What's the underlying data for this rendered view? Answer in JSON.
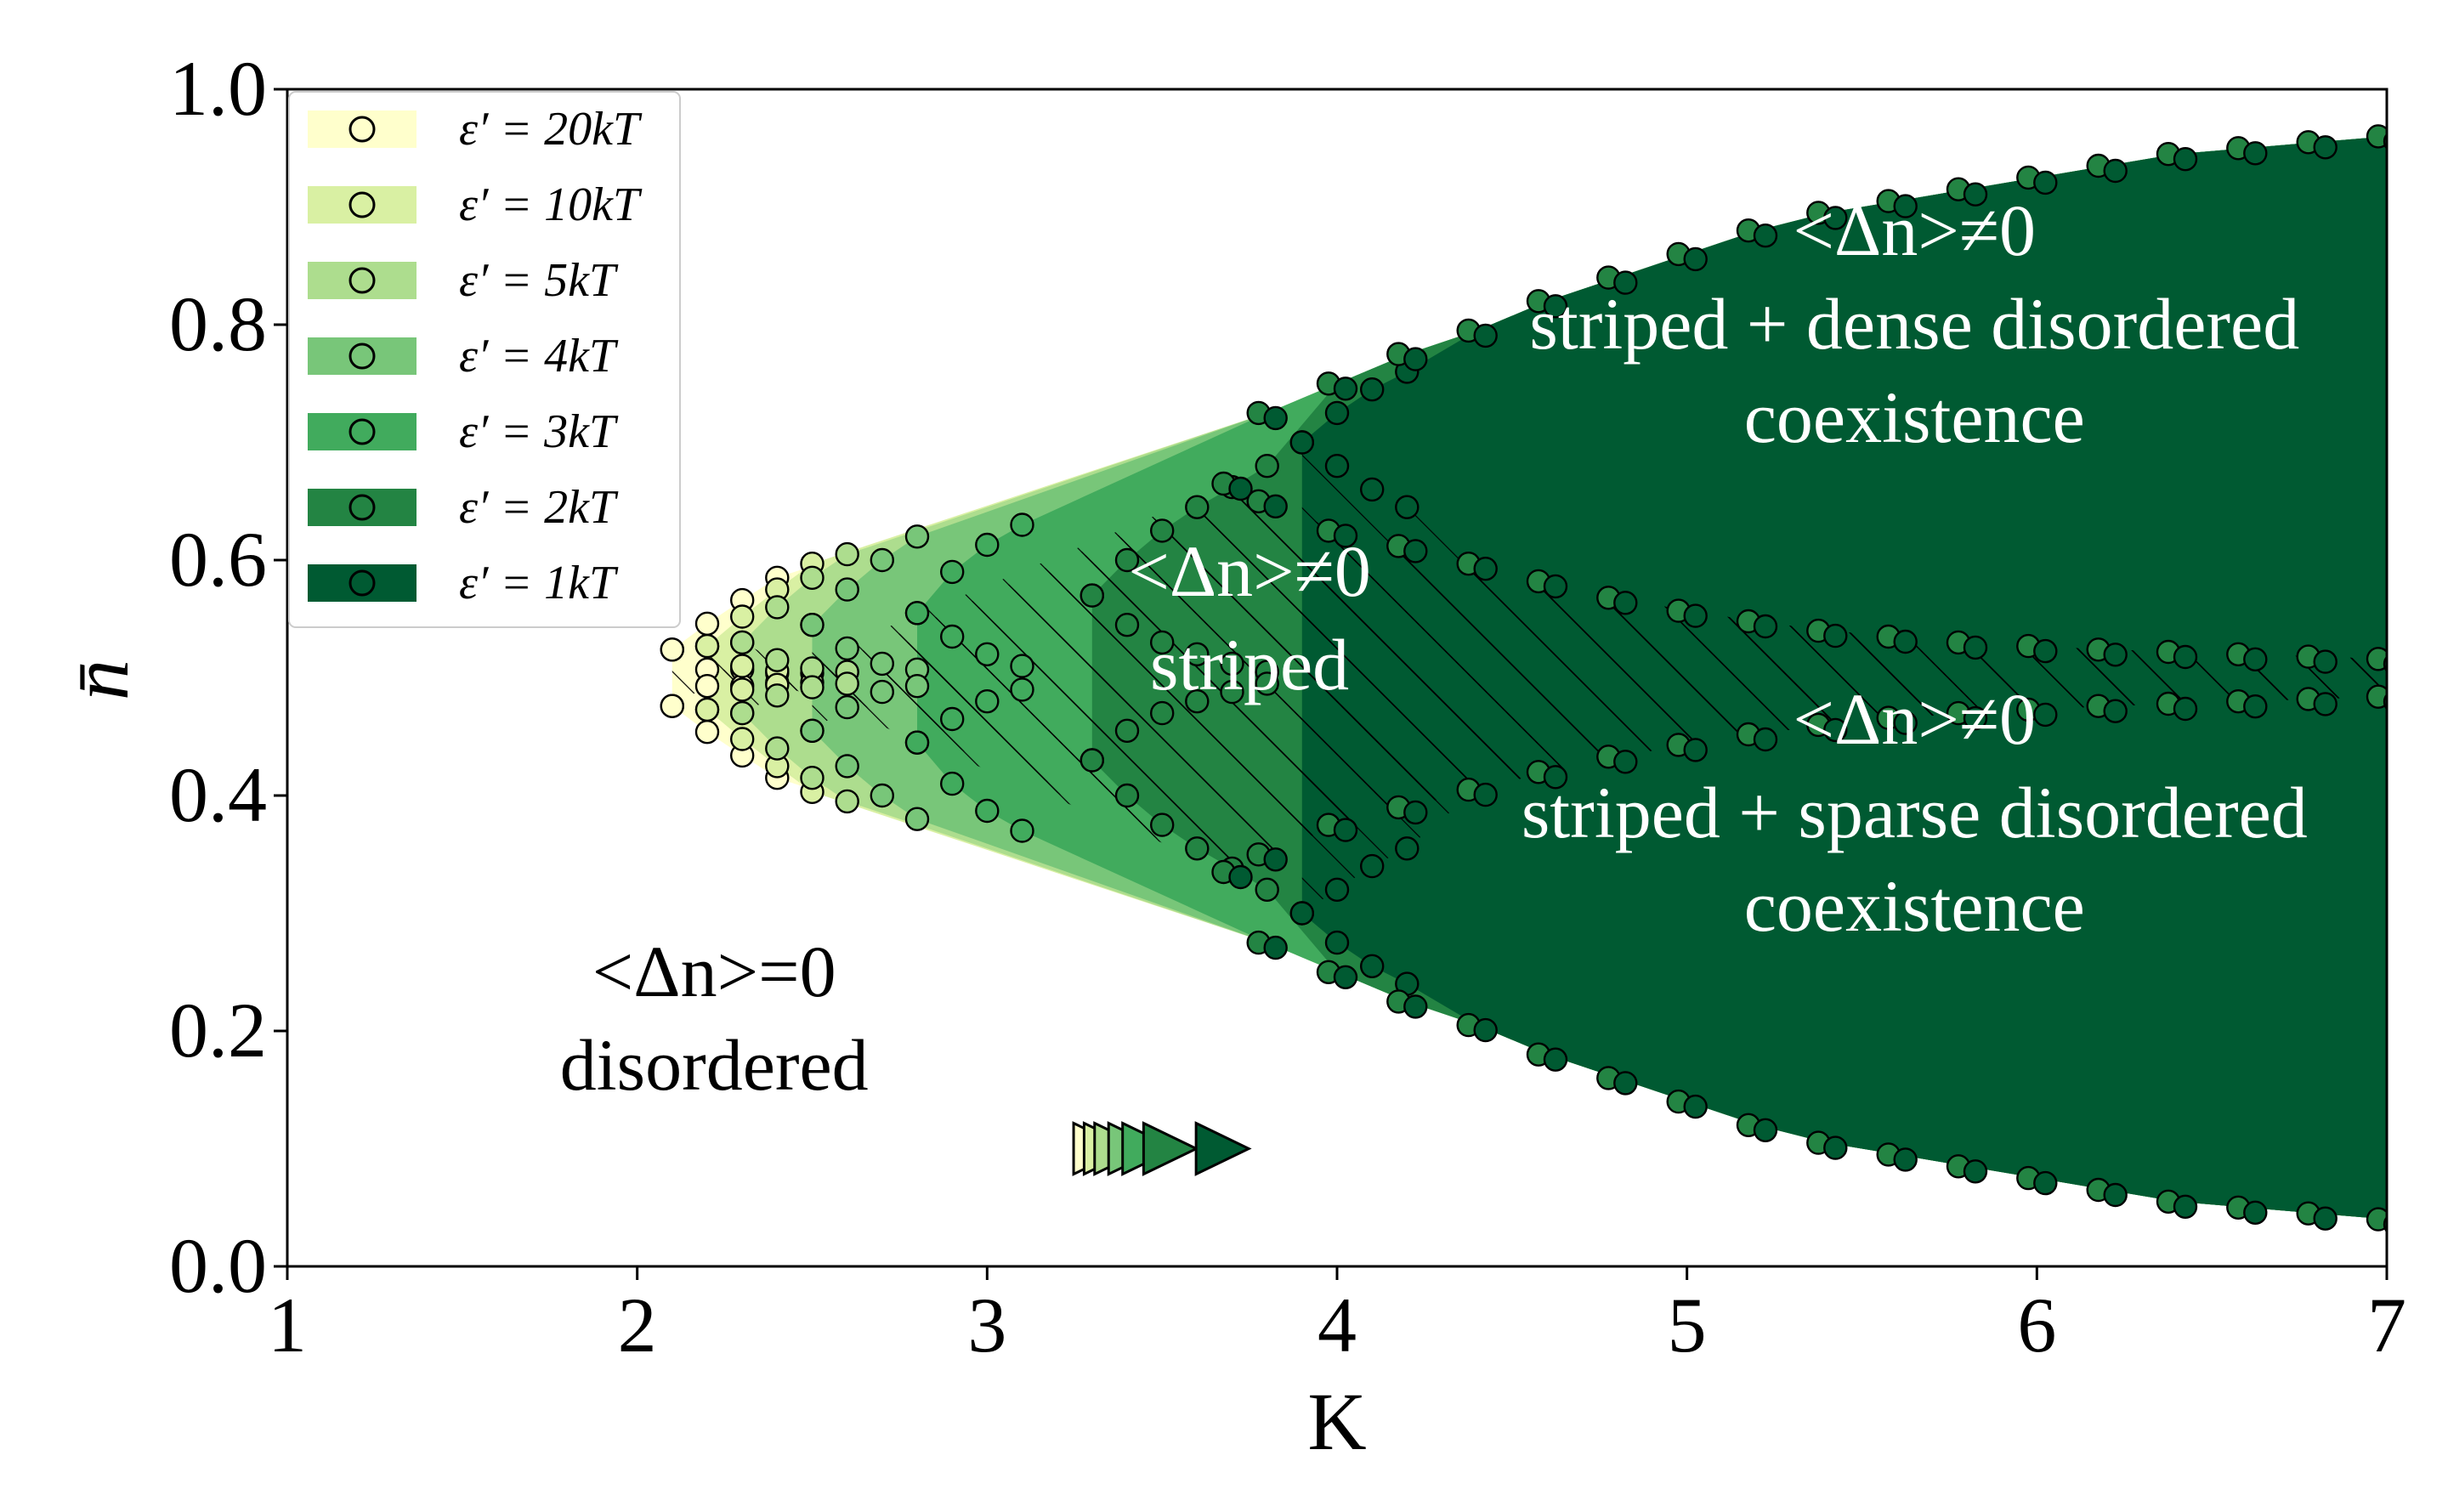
{
  "chart_data": {
    "type": "area",
    "xlabel": "K",
    "ylabel": "n̄",
    "xlim": [
      1,
      7
    ],
    "ylim": [
      0,
      1.0
    ],
    "xticks": [
      "1",
      "2",
      "3",
      "4",
      "5",
      "6",
      "7"
    ],
    "yticks": [
      "0.0",
      "0.2",
      "0.4",
      "0.6",
      "0.8",
      "1.0"
    ],
    "legend_position": "top-left",
    "series": [
      {
        "name": "ε′ = 20kT",
        "color": "#ffffcc",
        "kc": 2.1,
        "outer_upper": [
          [
            2.1,
            0.524
          ],
          [
            2.2,
            0.546
          ],
          [
            2.3,
            0.566
          ],
          [
            2.4,
            0.585
          ]
        ],
        "inner_upper": [
          [
            2.1,
            0.524
          ],
          [
            2.2,
            0.507
          ],
          [
            2.3,
            0.507
          ],
          [
            2.4,
            0.504
          ]
        ],
        "inner_lower": [
          [
            2.1,
            0.476
          ],
          [
            2.2,
            0.493
          ],
          [
            2.3,
            0.493
          ],
          [
            2.4,
            0.496
          ]
        ],
        "outer_lower": [
          [
            2.1,
            0.476
          ],
          [
            2.2,
            0.454
          ],
          [
            2.3,
            0.434
          ],
          [
            2.4,
            0.415
          ]
        ],
        "marker_x": 3.32
      },
      {
        "name": "ε′ = 10kT",
        "color": "#d9f0a3",
        "kc": 2.2,
        "outer_upper": [
          [
            2.2,
            0.527
          ],
          [
            2.3,
            0.552
          ],
          [
            2.4,
            0.575
          ],
          [
            2.5,
            0.597
          ]
        ],
        "inner_upper": [
          [
            2.2,
            0.527
          ],
          [
            2.3,
            0.51
          ],
          [
            2.4,
            0.506
          ],
          [
            2.5,
            0.504
          ]
        ],
        "inner_lower": [
          [
            2.2,
            0.473
          ],
          [
            2.3,
            0.49
          ],
          [
            2.4,
            0.494
          ],
          [
            2.5,
            0.496
          ]
        ],
        "outer_lower": [
          [
            2.2,
            0.473
          ],
          [
            2.3,
            0.448
          ],
          [
            2.4,
            0.425
          ],
          [
            2.5,
            0.403
          ]
        ],
        "marker_x": 3.35
      },
      {
        "name": "ε′ = 5kT",
        "color": "#addd8e",
        "kc": 2.3,
        "outer_upper": [
          [
            2.3,
            0.53
          ],
          [
            2.4,
            0.56
          ],
          [
            2.5,
            0.585
          ],
          [
            2.6,
            0.605
          ]
        ],
        "inner_upper": [
          [
            2.3,
            0.53
          ],
          [
            2.4,
            0.515
          ],
          [
            2.5,
            0.508
          ],
          [
            2.6,
            0.505
          ]
        ],
        "inner_lower": [
          [
            2.3,
            0.47
          ],
          [
            2.4,
            0.485
          ],
          [
            2.5,
            0.492
          ],
          [
            2.6,
            0.495
          ]
        ],
        "outer_lower": [
          [
            2.3,
            0.47
          ],
          [
            2.4,
            0.44
          ],
          [
            2.5,
            0.415
          ],
          [
            2.6,
            0.395
          ]
        ],
        "marker_x": 3.38
      },
      {
        "name": "ε′ = 4kT",
        "color": "#78c679",
        "kc": 2.5,
        "outer_upper": [
          [
            2.5,
            0.545
          ],
          [
            2.6,
            0.575
          ],
          [
            2.7,
            0.6
          ],
          [
            2.8,
            0.62
          ]
        ],
        "inner_upper": [
          [
            2.5,
            0.545
          ],
          [
            2.6,
            0.525
          ],
          [
            2.7,
            0.512
          ],
          [
            2.8,
            0.507
          ]
        ],
        "inner_lower": [
          [
            2.5,
            0.455
          ],
          [
            2.6,
            0.475
          ],
          [
            2.7,
            0.488
          ],
          [
            2.8,
            0.493
          ]
        ],
        "outer_lower": [
          [
            2.5,
            0.455
          ],
          [
            2.6,
            0.425
          ],
          [
            2.7,
            0.4
          ],
          [
            2.8,
            0.38
          ]
        ],
        "marker_x": 3.42
      },
      {
        "name": "ε′ = 3kT",
        "color": "#41ab5d",
        "kc": 2.8,
        "outer_upper": [
          [
            2.8,
            0.555
          ],
          [
            2.9,
            0.59
          ],
          [
            3.0,
            0.613
          ],
          [
            3.1,
            0.63
          ]
        ],
        "inner_upper": [
          [
            2.8,
            0.555
          ],
          [
            2.9,
            0.535
          ],
          [
            3.0,
            0.52
          ],
          [
            3.1,
            0.51
          ]
        ],
        "inner_lower": [
          [
            2.8,
            0.445
          ],
          [
            2.9,
            0.465
          ],
          [
            3.0,
            0.48
          ],
          [
            3.1,
            0.49
          ]
        ],
        "outer_lower": [
          [
            2.8,
            0.445
          ],
          [
            2.9,
            0.41
          ],
          [
            3.0,
            0.387
          ],
          [
            3.1,
            0.37
          ]
        ],
        "marker_x": 3.46
      },
      {
        "name": "ε′ = 2kT",
        "color": "#238443",
        "kc": 3.3,
        "outer_upper": [
          [
            3.3,
            0.57
          ],
          [
            3.4,
            0.6
          ],
          [
            3.5,
            0.625
          ],
          [
            3.6,
            0.645
          ],
          [
            3.7,
            0.662
          ],
          [
            3.8,
            0.68
          ]
        ],
        "inner_upper": [
          [
            3.3,
            0.57
          ],
          [
            3.4,
            0.545
          ],
          [
            3.5,
            0.53
          ],
          [
            3.6,
            0.52
          ],
          [
            3.7,
            0.512
          ],
          [
            3.8,
            0.505
          ]
        ],
        "inner_lower": [
          [
            3.3,
            0.43
          ],
          [
            3.4,
            0.455
          ],
          [
            3.5,
            0.47
          ],
          [
            3.6,
            0.48
          ],
          [
            3.7,
            0.488
          ],
          [
            3.8,
            0.495
          ]
        ],
        "outer_lower": [
          [
            3.3,
            0.43
          ],
          [
            3.4,
            0.4
          ],
          [
            3.5,
            0.375
          ],
          [
            3.6,
            0.355
          ],
          [
            3.7,
            0.338
          ],
          [
            3.8,
            0.32
          ]
        ],
        "marker_x": 3.52
      },
      {
        "name": "ε′ = 1kT",
        "color": "#005a32",
        "kc": 3.9,
        "outer_upper": [
          [
            3.9,
            0.7
          ],
          [
            4.0,
            0.725
          ],
          [
            4.1,
            0.745
          ],
          [
            4.2,
            0.76
          ]
        ],
        "inner_upper": [
          [
            3.9,
            0.7
          ],
          [
            4.0,
            0.68
          ],
          [
            4.1,
            0.66
          ],
          [
            4.2,
            0.645
          ]
        ],
        "inner_lower": [
          [
            3.9,
            0.3
          ],
          [
            4.0,
            0.32
          ],
          [
            4.1,
            0.34
          ],
          [
            4.2,
            0.355
          ]
        ],
        "outer_lower": [
          [
            3.9,
            0.3
          ],
          [
            4.0,
            0.275
          ],
          [
            4.1,
            0.255
          ],
          [
            4.2,
            0.24
          ]
        ],
        "marker_x": 3.67
      }
    ],
    "common_boundary": {
      "outer_upper": [
        [
          3.8,
          0.725
        ],
        [
          4.0,
          0.75
        ],
        [
          4.2,
          0.775
        ],
        [
          4.4,
          0.795
        ],
        [
          4.6,
          0.82
        ],
        [
          4.8,
          0.84
        ],
        [
          5.0,
          0.86
        ],
        [
          5.2,
          0.88
        ],
        [
          5.4,
          0.895
        ],
        [
          5.6,
          0.905
        ],
        [
          5.8,
          0.915
        ],
        [
          6.0,
          0.925
        ],
        [
          6.2,
          0.935
        ],
        [
          6.4,
          0.945
        ],
        [
          6.6,
          0.95
        ],
        [
          6.8,
          0.955
        ],
        [
          7.0,
          0.96
        ]
      ],
      "inner_upper": [
        [
          3.7,
          0.665
        ],
        [
          3.8,
          0.65
        ],
        [
          4.0,
          0.625
        ],
        [
          4.2,
          0.612
        ],
        [
          4.4,
          0.597
        ],
        [
          4.6,
          0.582
        ],
        [
          4.8,
          0.568
        ],
        [
          5.0,
          0.557
        ],
        [
          5.2,
          0.548
        ],
        [
          5.4,
          0.54
        ],
        [
          5.6,
          0.535
        ],
        [
          5.8,
          0.53
        ],
        [
          6.0,
          0.527
        ],
        [
          6.2,
          0.524
        ],
        [
          6.4,
          0.522
        ],
        [
          6.6,
          0.52
        ],
        [
          6.8,
          0.518
        ],
        [
          7.0,
          0.516
        ]
      ],
      "inner_lower": [
        [
          3.7,
          0.335
        ],
        [
          3.8,
          0.35
        ],
        [
          4.0,
          0.375
        ],
        [
          4.2,
          0.39
        ],
        [
          4.4,
          0.405
        ],
        [
          4.6,
          0.42
        ],
        [
          4.8,
          0.433
        ],
        [
          5.0,
          0.443
        ],
        [
          5.2,
          0.452
        ],
        [
          5.4,
          0.46
        ],
        [
          5.6,
          0.466
        ],
        [
          5.8,
          0.47
        ],
        [
          6.0,
          0.473
        ],
        [
          6.2,
          0.476
        ],
        [
          6.4,
          0.478
        ],
        [
          6.6,
          0.48
        ],
        [
          6.8,
          0.482
        ],
        [
          7.0,
          0.484
        ]
      ],
      "outer_lower": [
        [
          3.8,
          0.275
        ],
        [
          4.0,
          0.25
        ],
        [
          4.2,
          0.225
        ],
        [
          4.4,
          0.205
        ],
        [
          4.6,
          0.18
        ],
        [
          4.8,
          0.16
        ],
        [
          5.0,
          0.14
        ],
        [
          5.2,
          0.12
        ],
        [
          5.4,
          0.105
        ],
        [
          5.6,
          0.095
        ],
        [
          5.8,
          0.085
        ],
        [
          6.0,
          0.075
        ],
        [
          6.2,
          0.065
        ],
        [
          6.4,
          0.055
        ],
        [
          6.6,
          0.05
        ],
        [
          6.8,
          0.045
        ],
        [
          7.0,
          0.04
        ]
      ]
    },
    "marker_y": 0.1,
    "annotations": [
      {
        "lines": [
          "<Δn>≠0",
          "striped + dense disordered",
          "coexistence"
        ],
        "x": 5.65,
        "y": 0.8,
        "color": "#ffffff"
      },
      {
        "lines": [
          "<Δn>≠0",
          "striped"
        ],
        "x": 3.75,
        "y": 0.55,
        "color": "#ffffff"
      },
      {
        "lines": [
          "<Δn>≠0",
          "striped + sparse disordered",
          "coexistence"
        ],
        "x": 5.65,
        "y": 0.385,
        "color": "#ffffff"
      },
      {
        "lines": [
          "<Δn>=0",
          "disordered"
        ],
        "x": 2.22,
        "y": 0.21,
        "color": "#000000"
      }
    ]
  }
}
